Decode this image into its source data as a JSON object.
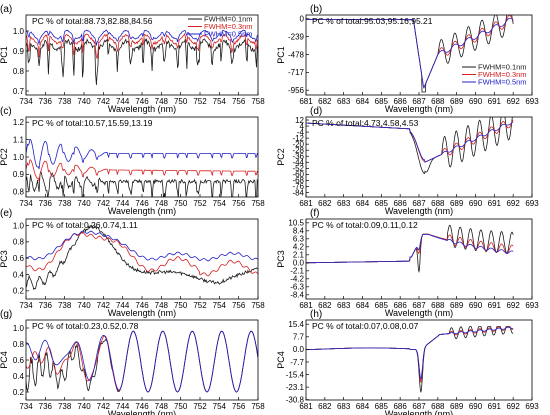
{
  "colors": {
    "black": "#1a1a1a",
    "red": "#d42020",
    "blue": "#2020c8"
  },
  "legend_entries": [
    "FWHM=0.1nm",
    "FWHM=0.3nm",
    "FWHM=0.5nm"
  ],
  "chart_data": [
    {
      "id": "a",
      "panel_label": "(a)",
      "type": "line",
      "pc_text": "PC % of total:88.73,82.88,84.56",
      "ylabel": "PC1",
      "xlabel": "Wavelength (nm)",
      "xlim": [
        734,
        758
      ],
      "ylim": [
        0.68,
        1.08
      ],
      "xticks": [
        734,
        736,
        738,
        740,
        742,
        744,
        746,
        748,
        750,
        752,
        754,
        756,
        758
      ],
      "yticks": [
        0.7,
        0.8,
        0.9,
        1.0
      ],
      "ytick_labels": [
        "0.7",
        "0.8",
        "0.9",
        "1.0"
      ],
      "legend_position": "top-right",
      "series": [
        {
          "name": "FWHM=0.1nm",
          "color_key": "black",
          "profile": "deep_noisy",
          "base": 0.96
        },
        {
          "name": "FWHM=0.3nm",
          "color_key": "red",
          "profile": "mild",
          "base": 0.97
        },
        {
          "name": "FWHM=0.5nm",
          "color_key": "blue",
          "profile": "flat",
          "base": 0.985
        }
      ]
    },
    {
      "id": "b",
      "panel_label": "(b)",
      "type": "line",
      "pc_text": "PC % of total:95.03,95.16,95.21",
      "ylabel": "PC1",
      "xlabel": "Wavelength (nm)",
      "xlim": [
        681,
        693
      ],
      "ylim": [
        -1020,
        50
      ],
      "xticks": [
        681,
        682,
        683,
        684,
        685,
        686,
        687,
        688,
        689,
        690,
        691,
        692,
        693
      ],
      "yticks": [
        0,
        -239,
        -478,
        -717,
        -956
      ],
      "ytick_labels": [
        "0",
        "-239",
        "-478",
        "-717",
        "-956"
      ],
      "legend_position": "right",
      "series": [
        {
          "name": "FWHM=0.1nm",
          "color_key": "black"
        },
        {
          "name": "FWHM=0.3nm",
          "color_key": "red"
        },
        {
          "name": "FWHM=0.5nm",
          "color_key": "blue"
        }
      ]
    },
    {
      "id": "c",
      "panel_label": "(c)",
      "type": "line",
      "pc_text": "PC % of total:10.57,15.59,13.19",
      "ylabel": "PC2",
      "xlabel": "Wavelength (nm)",
      "xlim": [
        734,
        758
      ],
      "ylim": [
        0.77,
        1.23
      ],
      "xticks": [
        734,
        736,
        738,
        740,
        742,
        744,
        746,
        748,
        750,
        752,
        754,
        756,
        758
      ],
      "yticks": [
        0.8,
        0.9,
        1.0,
        1.1,
        1.2
      ],
      "ytick_labels": [
        "0.8",
        "0.9",
        "1.0",
        "1.1",
        "1.2"
      ],
      "series": [
        {
          "name": "FWHM=0.1nm",
          "color_key": "black",
          "base": 0.88
        },
        {
          "name": "FWHM=0.3nm",
          "color_key": "red",
          "base": 0.93
        },
        {
          "name": "FWHM=0.5nm",
          "color_key": "blue",
          "base": 1.02
        }
      ]
    },
    {
      "id": "d",
      "panel_label": "(d)",
      "type": "line",
      "pc_text": "PC % of total:4.73,4.58,4.53",
      "ylabel": "PC2",
      "xlabel": "Wavelength (nm)",
      "xlim": [
        681,
        693
      ],
      "ylim": [
        -90,
        16
      ],
      "xticks": [
        681,
        682,
        683,
        684,
        685,
        686,
        687,
        688,
        689,
        690,
        691,
        692,
        693
      ],
      "yticks": [
        12,
        4,
        -4,
        -12,
        -20,
        -28,
        -36,
        -44,
        -52,
        -60,
        -68,
        -76,
        -84
      ],
      "ytick_labels": [
        "12",
        "4",
        "-4",
        "-12",
        "-20",
        "-28",
        "-36",
        "-44",
        "-52",
        "-60",
        "-68",
        "-76",
        "-84"
      ],
      "series": [
        {
          "name": "FWHM=0.1nm",
          "color_key": "black"
        },
        {
          "name": "FWHM=0.3nm",
          "color_key": "red"
        },
        {
          "name": "FWHM=0.5nm",
          "color_key": "blue"
        }
      ]
    },
    {
      "id": "e",
      "panel_label": "(e)",
      "type": "line",
      "pc_text": "PC % of total:0.26,0.74,1.11",
      "ylabel": "PC3",
      "xlabel": "Wavelength (nm)",
      "xlim": [
        734,
        758
      ],
      "ylim": [
        0.1,
        1.08
      ],
      "xticks": [
        734,
        736,
        738,
        740,
        742,
        744,
        746,
        748,
        750,
        752,
        754,
        756,
        758
      ],
      "yticks": [
        0.2,
        0.4,
        0.6,
        0.8,
        1.0
      ],
      "ytick_labels": [
        "0.2",
        "0.4",
        "0.6",
        "0.8",
        "1.0"
      ],
      "series": [
        {
          "name": "FWHM=0.1nm",
          "color_key": "black"
        },
        {
          "name": "FWHM=0.3nm",
          "color_key": "red"
        },
        {
          "name": "FWHM=0.5nm",
          "color_key": "blue"
        }
      ]
    },
    {
      "id": "f",
      "panel_label": "(f)",
      "type": "line",
      "pc_text": "PC % of total:0.09,0.11,0.12",
      "ylabel": "PC3",
      "xlabel": "Wavelength (nm)",
      "xlim": [
        681,
        693
      ],
      "ylim": [
        -9.5,
        11.5
      ],
      "xticks": [
        681,
        682,
        683,
        684,
        685,
        686,
        687,
        688,
        689,
        690,
        691,
        692,
        693
      ],
      "yticks": [
        10.5,
        8.4,
        6.3,
        4.2,
        2.1,
        0.0,
        -2.1,
        -4.2,
        -6.3,
        -8.4
      ],
      "ytick_labels": [
        "10.5",
        "8.4",
        "6.3",
        "4.2",
        "2.1",
        "0.0",
        "-2.1",
        "-4.2",
        "-6.3",
        "-8.4"
      ],
      "series": [
        {
          "name": "FWHM=0.1nm",
          "color_key": "black"
        },
        {
          "name": "FWHM=0.3nm",
          "color_key": "red"
        },
        {
          "name": "FWHM=0.5nm",
          "color_key": "blue"
        }
      ]
    },
    {
      "id": "g",
      "panel_label": "(g)",
      "type": "line",
      "pc_text": "PC % of total:0.23,0.52,0.78",
      "ylabel": "PC4",
      "xlabel": "Wavelength (nm)",
      "xlim": [
        734,
        758
      ],
      "ylim": [
        0.1,
        1.1
      ],
      "xticks": [
        734,
        736,
        738,
        740,
        742,
        744,
        746,
        748,
        750,
        752,
        754,
        756,
        758
      ],
      "yticks": [
        0.2,
        0.4,
        0.6,
        0.8,
        1.0
      ],
      "ytick_labels": [
        "0.2",
        "0.4",
        "0.6",
        "0.8",
        "1.0"
      ],
      "series": [
        {
          "name": "FWHM=0.1nm",
          "color_key": "black"
        },
        {
          "name": "FWHM=0.3nm",
          "color_key": "red"
        },
        {
          "name": "FWHM=0.5nm",
          "color_key": "blue"
        }
      ]
    },
    {
      "id": "h",
      "panel_label": "(h)",
      "type": "line",
      "pc_text": "PC % of total:0.07,0.08,0.07",
      "ylabel": "PC4",
      "xlabel": "Wavelength (nm)",
      "xlim": [
        681,
        693
      ],
      "ylim": [
        -31,
        18
      ],
      "xticks": [
        681,
        682,
        683,
        684,
        685,
        686,
        687,
        688,
        689,
        690,
        691,
        692,
        693
      ],
      "yticks": [
        15.4,
        7.7,
        0.0,
        -7.7,
        -15.4,
        -23.1,
        -30.8
      ],
      "ytick_labels": [
        "15.4",
        "7.7",
        "0.0",
        "-7.7",
        "-15.4",
        "-23.1",
        "-30.8"
      ],
      "series": [
        {
          "name": "FWHM=0.1nm",
          "color_key": "black"
        },
        {
          "name": "FWHM=0.3nm",
          "color_key": "red"
        },
        {
          "name": "FWHM=0.5nm",
          "color_key": "blue"
        }
      ]
    }
  ]
}
